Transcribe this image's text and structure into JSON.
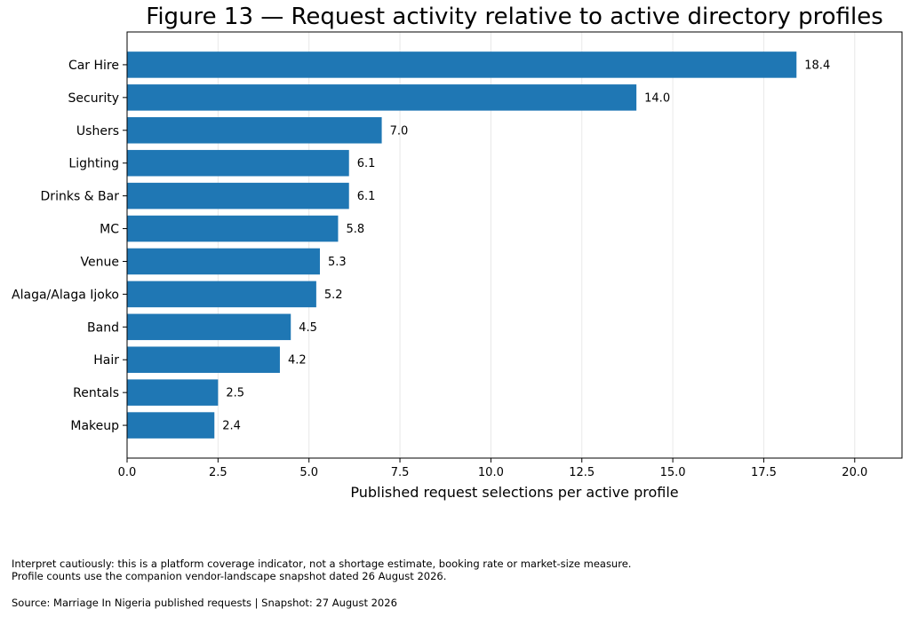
{
  "chart_data": {
    "type": "bar",
    "orientation": "horizontal",
    "title": "Figure 13 — Request activity relative to active directory profiles",
    "xlabel": "Published request selections per active profile",
    "ylabel": "",
    "categories": [
      "Car Hire",
      "Security",
      "Ushers",
      "Lighting",
      "Drinks & Bar",
      "MC",
      "Venue",
      "Alaga/Alaga Ijoko",
      "Band",
      "Hair",
      "Rentals",
      "Makeup"
    ],
    "values": [
      18.4,
      14.0,
      7.0,
      6.1,
      6.1,
      5.8,
      5.3,
      5.2,
      4.5,
      4.2,
      2.5,
      2.4
    ],
    "value_labels": [
      "18.4",
      "14.0",
      "7.0",
      "6.1",
      "6.1",
      "5.8",
      "5.3",
      "5.2",
      "4.5",
      "4.2",
      "2.5",
      "2.4"
    ],
    "xlim": [
      0,
      21.3
    ],
    "x_ticks": [
      0,
      2.5,
      5,
      7.5,
      10,
      12.5,
      15,
      17.5,
      20
    ],
    "x_tick_labels": [
      "0.0",
      "2.5",
      "5.0",
      "7.5",
      "10.0",
      "12.5",
      "15.0",
      "17.5",
      "20.0"
    ],
    "grid": "vertical",
    "bar_color": "#1f77b4",
    "grid_color": "#e8e8e8"
  },
  "notes": {
    "line1": "Interpret cautiously: this is a platform coverage indicator, not a shortage estimate, booking rate or market-size measure.",
    "line2": "Profile counts use the companion vendor-landscape snapshot dated 26 August 2026.",
    "source": "Source: Marriage In Nigeria published requests | Snapshot: 27 August 2026"
  }
}
